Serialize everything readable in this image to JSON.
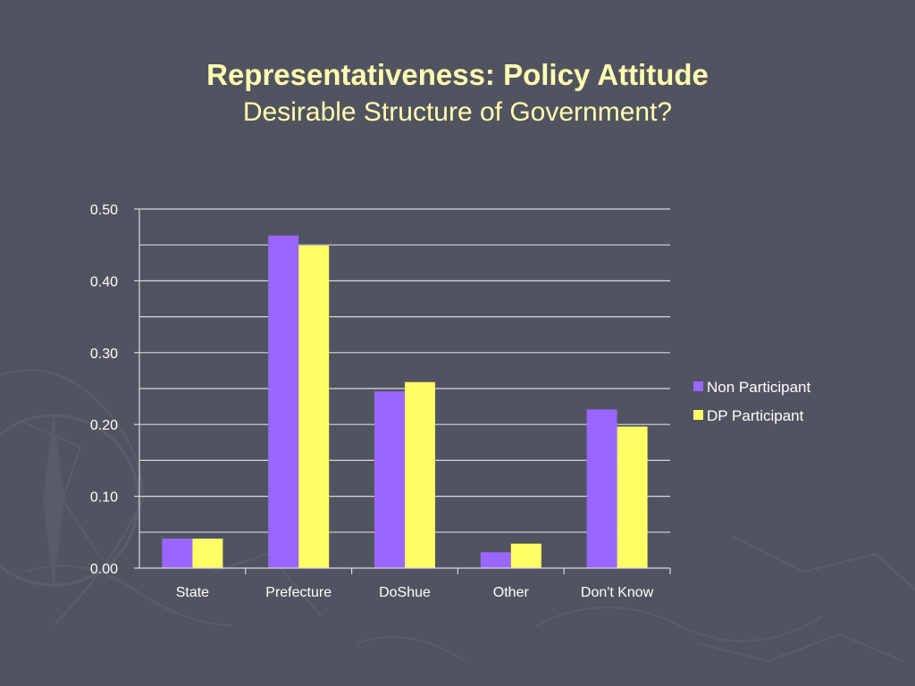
{
  "slide": {
    "title": "Representativeness: Policy Attitude",
    "subtitle": "Desirable Structure of Government?"
  },
  "colors": {
    "background": "#525360",
    "title": "#ffffb0",
    "non_participant": "#9966ff",
    "dp_participant": "#ffff66",
    "gridline": "#d8d8e0",
    "text": "#ffffff"
  },
  "chart_data": {
    "type": "bar",
    "title": "",
    "xlabel": "",
    "ylabel": "",
    "categories": [
      "State",
      "Prefecture",
      "DoShue",
      "Other",
      "Don't Know"
    ],
    "series": [
      {
        "name": "Non Participant",
        "color": "#9966ff",
        "values": [
          0.041,
          0.463,
          0.246,
          0.022,
          0.221
        ]
      },
      {
        "name": "DP Participant",
        "color": "#ffff66",
        "values": [
          0.041,
          0.449,
          0.259,
          0.034,
          0.197
        ]
      }
    ],
    "ylim": [
      0,
      0.5
    ],
    "yticks": [
      "0.00",
      "0.10",
      "0.20",
      "0.30",
      "0.40",
      "0.50"
    ],
    "grid": true,
    "legend_position": "right"
  }
}
